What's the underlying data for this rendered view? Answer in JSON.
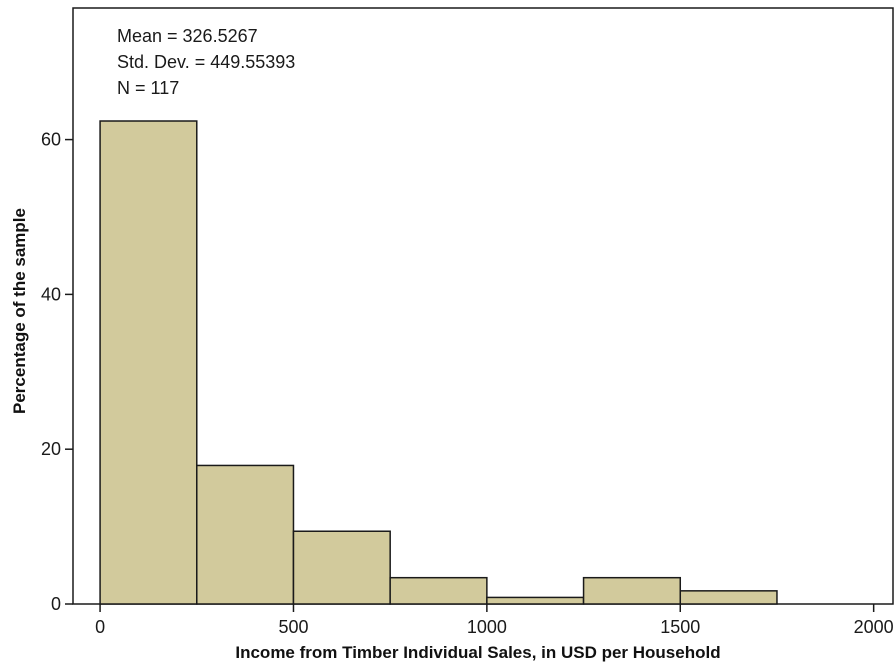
{
  "chart_data": {
    "type": "bar",
    "subtype": "histogram",
    "bins": [
      {
        "start": 0,
        "end": 250,
        "value": 62.4
      },
      {
        "start": 250,
        "end": 500,
        "value": 17.9
      },
      {
        "start": 500,
        "end": 750,
        "value": 9.4
      },
      {
        "start": 750,
        "end": 1000,
        "value": 3.4
      },
      {
        "start": 1000,
        "end": 1250,
        "value": 0.85
      },
      {
        "start": 1250,
        "end": 1500,
        "value": 3.4
      },
      {
        "start": 1500,
        "end": 1750,
        "value": 1.7
      }
    ],
    "xlabel": "Income from Timber Individual Sales, in USD per Household",
    "ylabel": "Percentage of the sample",
    "xlim": [
      -70,
      2050
    ],
    "ylim": [
      0,
      77
    ],
    "xticks": [
      0,
      500,
      1000,
      1500,
      2000
    ],
    "yticks": [
      0,
      20,
      40,
      60
    ],
    "stats": {
      "mean": "Mean = 326.5267",
      "std": "Std. Dev. = 449.55393",
      "n": "N = 117"
    },
    "grid": false,
    "colors": {
      "bar_fill": "#d2ca9c",
      "bar_stroke": "#1a1a1a",
      "axis": "#1a1a1a"
    }
  }
}
